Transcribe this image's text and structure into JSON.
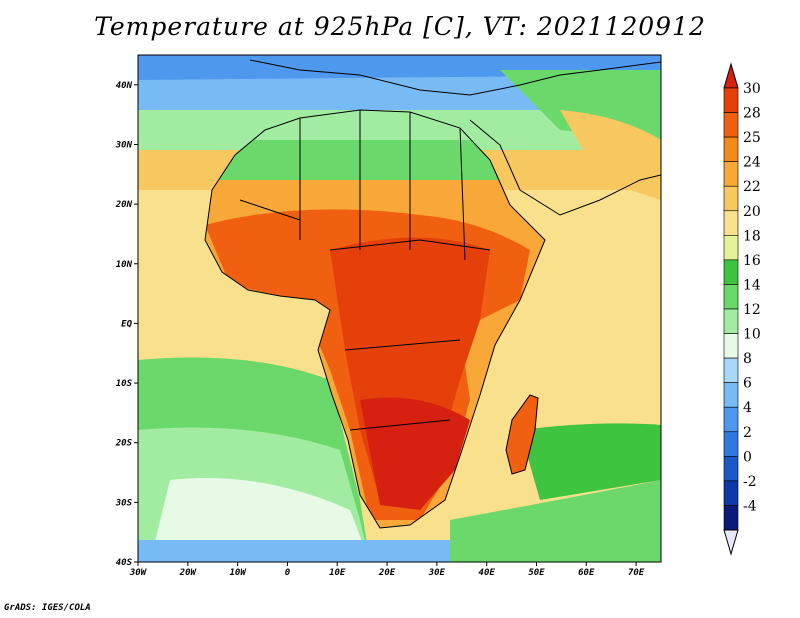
{
  "title": "Temperature at 925hPa [C], VT: 2021120912",
  "footer": "GrADS: IGES/COLA",
  "map": {
    "lon_labels": [
      "30W",
      "20W",
      "10W",
      "0",
      "10E",
      "20E",
      "30E",
      "40E",
      "50E",
      "60E",
      "70E"
    ],
    "lat_labels": [
      "40N",
      "30N",
      "20N",
      "10N",
      "EQ",
      "10S",
      "20S",
      "30S",
      "40S"
    ],
    "lon_range": [
      -30,
      75
    ],
    "lat_range": [
      -40,
      45
    ]
  },
  "colorbar": {
    "labels": [
      "30",
      "28",
      "25",
      "24",
      "22",
      "20",
      "18",
      "16",
      "14",
      "12",
      "10",
      "8",
      "6",
      "4",
      "2",
      "0",
      "-2",
      "-4"
    ],
    "colors": [
      "#e6400a",
      "#f06010",
      "#f58a1c",
      "#f8a838",
      "#f8c860",
      "#f8e08c",
      "#e6f29a",
      "#3fc43f",
      "#6ad86a",
      "#a2eca2",
      "#e6fae6",
      "#a8d8f8",
      "#78baf4",
      "#4e98ee",
      "#2e78e0",
      "#1a58c8",
      "#0c38a8",
      "#0a1a78"
    ],
    "top_color": "#d62010",
    "bottom_color": "#e8e8fa"
  }
}
